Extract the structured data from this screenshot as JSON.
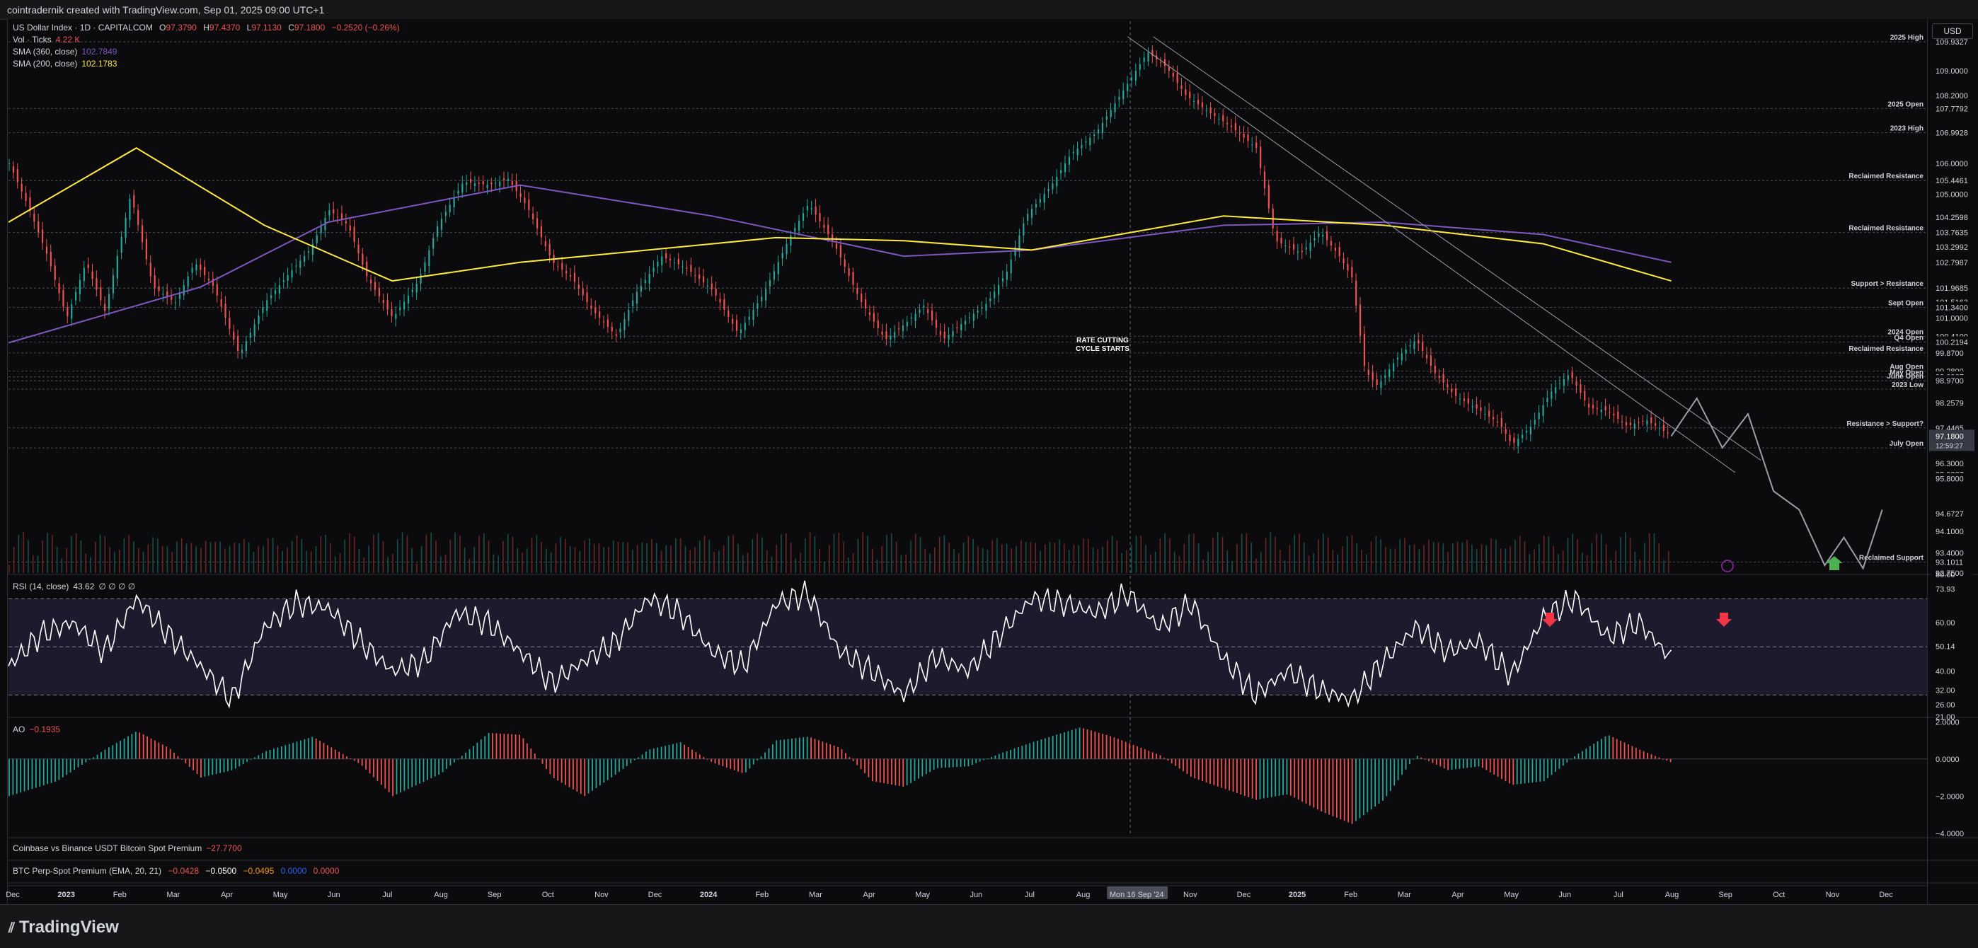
{
  "header": {
    "attribution": "cointradernik created with TradingView.com, Sep 01, 2025 09:00 UTC+1"
  },
  "legend": {
    "symbol": "US Dollar Index · 1D · CAPITALCOM",
    "ohlc": [
      {
        "k": "O",
        "v": "97.3790"
      },
      {
        "k": "H",
        "v": "97.4370"
      },
      {
        "k": "L",
        "v": "97.1130"
      },
      {
        "k": "C",
        "v": "97.1800"
      }
    ],
    "change": "−0.2520 (−0.26%)",
    "vol_label": "Vol · Ticks",
    "vol_value": "4.22 K",
    "sma360_label": "SMA (360, close)",
    "sma360_value": "102.7849",
    "sma200_label": "SMA (200, close)",
    "sma200_value": "102.1783"
  },
  "currency_button": "USD",
  "colors": {
    "up": "#26a69a",
    "down": "#ef5350",
    "sma360": "#7e57c2",
    "sma200": "#ffeb3b",
    "rsi": "#ffffff",
    "rsi_band": "#1d1a2e",
    "arrow_red": "#f23645",
    "arrow_green": "#4caf50"
  },
  "chart_data": [
    {
      "type": "line",
      "name_panel": "price",
      "ylim": [
        92.75,
        110.6
      ],
      "x_ticks": [
        "Dec",
        "2023",
        "Feb",
        "Mar",
        "Apr",
        "May",
        "Jun",
        "Jul",
        "Aug",
        "Sep",
        "Oct",
        "Nov",
        "Dec",
        "2024",
        "Feb",
        "Mar",
        "Apr",
        "May",
        "Jun",
        "Jul",
        "Aug",
        "Mon 16 Sep '24",
        "Nov",
        "Dec",
        "2025",
        "Feb",
        "Mar",
        "Apr",
        "May",
        "Jun",
        "Jul",
        "Aug",
        "Sep",
        "Oct",
        "Nov",
        "Dec"
      ],
      "price_path": [
        [
          0,
          106.0
        ],
        [
          6,
          104.6
        ],
        [
          12,
          103.0
        ],
        [
          18,
          101.0
        ],
        [
          24,
          102.8
        ],
        [
          30,
          101.2
        ],
        [
          38,
          105.0
        ],
        [
          45,
          102.0
        ],
        [
          52,
          101.5
        ],
        [
          58,
          102.8
        ],
        [
          64,
          102.0
        ],
        [
          72,
          99.8
        ],
        [
          80,
          101.5
        ],
        [
          88,
          102.5
        ],
        [
          94,
          103.2
        ],
        [
          100,
          104.5
        ],
        [
          106,
          104.0
        ],
        [
          112,
          102.3
        ],
        [
          120,
          101.0
        ],
        [
          128,
          102.2
        ],
        [
          134,
          104.0
        ],
        [
          142,
          105.4
        ],
        [
          150,
          105.3
        ],
        [
          156,
          105.5
        ],
        [
          162,
          104.6
        ],
        [
          170,
          102.8
        ],
        [
          176,
          102.3
        ],
        [
          182,
          101.3
        ],
        [
          190,
          100.4
        ],
        [
          196,
          101.8
        ],
        [
          204,
          103.0
        ],
        [
          212,
          102.6
        ],
        [
          220,
          101.9
        ],
        [
          228,
          100.5
        ],
        [
          236,
          101.8
        ],
        [
          244,
          103.6
        ],
        [
          250,
          104.7
        ],
        [
          258,
          103.4
        ],
        [
          266,
          101.6
        ],
        [
          274,
          100.3
        ],
        [
          280,
          100.8
        ],
        [
          286,
          101.4
        ],
        [
          292,
          100.3
        ],
        [
          300,
          101.0
        ],
        [
          306,
          101.5
        ],
        [
          312,
          102.5
        ],
        [
          318,
          104.3
        ],
        [
          326,
          105.3
        ],
        [
          332,
          106.3
        ],
        [
          340,
          107.0
        ],
        [
          348,
          108.3
        ],
        [
          356,
          109.6
        ],
        [
          362,
          109.1
        ],
        [
          368,
          108.2
        ],
        [
          376,
          107.6
        ],
        [
          382,
          107.2
        ],
        [
          390,
          106.5
        ],
        [
          396,
          103.5
        ],
        [
          404,
          103.1
        ],
        [
          410,
          103.8
        ],
        [
          416,
          103.0
        ],
        [
          420,
          102.3
        ],
        [
          424,
          99.3
        ],
        [
          428,
          98.8
        ],
        [
          434,
          99.7
        ],
        [
          440,
          100.3
        ],
        [
          446,
          99.2
        ],
        [
          452,
          98.5
        ],
        [
          460,
          98.0
        ],
        [
          466,
          97.6
        ],
        [
          470,
          96.9
        ],
        [
          476,
          97.5
        ],
        [
          482,
          98.6
        ],
        [
          488,
          99.2
        ],
        [
          494,
          98.1
        ],
        [
          500,
          98.0
        ],
        [
          506,
          97.5
        ],
        [
          512,
          97.7
        ],
        [
          520,
          97.18
        ]
      ],
      "projection_path": [
        [
          520,
          97.18
        ],
        [
          528,
          98.4
        ],
        [
          536,
          96.8
        ],
        [
          544,
          97.9
        ],
        [
          552,
          95.4
        ],
        [
          560,
          94.8
        ],
        [
          568,
          93.0
        ],
        [
          574,
          93.9
        ],
        [
          580,
          92.9
        ],
        [
          586,
          94.8
        ]
      ],
      "sma200": [
        [
          0,
          104.1
        ],
        [
          40,
          106.5
        ],
        [
          80,
          104.0
        ],
        [
          120,
          102.2
        ],
        [
          160,
          102.8
        ],
        [
          200,
          103.2
        ],
        [
          240,
          103.6
        ],
        [
          280,
          103.5
        ],
        [
          320,
          103.2
        ],
        [
          380,
          104.3
        ],
        [
          430,
          104.0
        ],
        [
          480,
          103.4
        ],
        [
          520,
          102.2
        ]
      ],
      "sma360": [
        [
          0,
          100.2
        ],
        [
          60,
          102.0
        ],
        [
          100,
          104.1
        ],
        [
          160,
          105.3
        ],
        [
          220,
          104.3
        ],
        [
          280,
          103.0
        ],
        [
          320,
          103.2
        ],
        [
          380,
          104.0
        ],
        [
          430,
          104.1
        ],
        [
          480,
          103.7
        ],
        [
          520,
          102.8
        ]
      ],
      "levels": [
        {
          "label": "2025 High",
          "value": 109.9327
        },
        {
          "label": "2025 Open",
          "value": 107.7792
        },
        {
          "label": "2023 High",
          "value": 106.9928
        },
        {
          "label": "Reclaimed Resistance",
          "value": 105.4461
        },
        {
          "label": "Reclaimed Resistance",
          "value": 103.7635
        },
        {
          "label": "Support > Resistance",
          "value": 101.9685
        },
        {
          "label": "Sept Open",
          "value": 101.34
        },
        {
          "label": "2024 Open",
          "value": 100.41
        },
        {
          "label": "Q4 Open",
          "value": 100.2194
        },
        {
          "label": "Reclaimed Resistance",
          "value": 99.87
        },
        {
          "label": "Aug Open",
          "value": 99.28
        },
        {
          "label": "May Open",
          "value": 99.0967
        },
        {
          "label": "June Open",
          "value": 98.97
        },
        {
          "label": "2023 Low",
          "value": 98.7
        },
        {
          "label": "Resistance > Support?",
          "value": 97.4465
        },
        {
          "label": "July Open",
          "value": 96.7969
        },
        {
          "label": "Reclaimed Support",
          "value": 93.1011
        }
      ],
      "y_tick_labels": [
        "109.9327",
        "109.0000",
        "108.2000",
        "107.7792",
        "106.9928",
        "106.0000",
        "105.4461",
        "105.0000",
        "104.2598",
        "103.7635",
        "103.2992",
        "102.7987",
        "101.9685",
        "101.5163",
        "101.3400",
        "101.0000",
        "100.4100",
        "100.2194",
        "99.8700",
        "99.2800",
        "99.0967",
        "98.9700",
        "98.2579",
        "97.4465",
        "96.7969",
        "96.3000",
        "95.9387",
        "95.8000",
        "94.6727",
        "94.1000",
        "93.4000",
        "93.1011",
        "92.7500"
      ],
      "last_price": "97.1800",
      "countdown": "12:59:27",
      "annotation": "RATE CUTTING CYCLE STARTS"
    },
    {
      "type": "line",
      "name_panel": "rsi",
      "legend_label": "RSI (14, close)",
      "legend_value": "43.62",
      "legend_extra": "∅ ∅ ∅ ∅",
      "ylim": [
        21,
        80
      ],
      "band": [
        30,
        70
      ],
      "y_tick_labels": [
        "80.00",
        "73.93",
        "60.00",
        "50.14",
        "40.00",
        "32.00",
        "26.00",
        "21.00"
      ],
      "path": [
        [
          0,
          42
        ],
        [
          10,
          55
        ],
        [
          20,
          60
        ],
        [
          30,
          48
        ],
        [
          40,
          70
        ],
        [
          50,
          55
        ],
        [
          60,
          42
        ],
        [
          70,
          28
        ],
        [
          80,
          58
        ],
        [
          90,
          68
        ],
        [
          100,
          66
        ],
        [
          110,
          52
        ],
        [
          120,
          40
        ],
        [
          130,
          44
        ],
        [
          140,
          64
        ],
        [
          150,
          60
        ],
        [
          160,
          48
        ],
        [
          170,
          35
        ],
        [
          180,
          44
        ],
        [
          190,
          52
        ],
        [
          200,
          70
        ],
        [
          210,
          64
        ],
        [
          220,
          48
        ],
        [
          230,
          42
        ],
        [
          240,
          68
        ],
        [
          250,
          72
        ],
        [
          260,
          48
        ],
        [
          270,
          40
        ],
        [
          280,
          30
        ],
        [
          290,
          46
        ],
        [
          300,
          40
        ],
        [
          310,
          55
        ],
        [
          320,
          70
        ],
        [
          330,
          68
        ],
        [
          340,
          64
        ],
        [
          350,
          72
        ],
        [
          360,
          58
        ],
        [
          370,
          68
        ],
        [
          380,
          45
        ],
        [
          390,
          30
        ],
        [
          400,
          40
        ],
        [
          410,
          32
        ],
        [
          420,
          28
        ],
        [
          430,
          44
        ],
        [
          440,
          58
        ],
        [
          450,
          48
        ],
        [
          460,
          52
        ],
        [
          470,
          38
        ],
        [
          480,
          62
        ],
        [
          490,
          70
        ],
        [
          500,
          54
        ],
        [
          510,
          60
        ],
        [
          520,
          45
        ]
      ]
    },
    {
      "type": "bar",
      "name_panel": "ao",
      "legend_label": "AO",
      "legend_value": "−0.1935",
      "ylim": [
        -4.2,
        2.2
      ],
      "y_tick_labels": [
        "2.0000",
        "0.0000",
        "−2.0000",
        "−4.0000"
      ],
      "path": [
        [
          0,
          -2.0
        ],
        [
          15,
          -1.2
        ],
        [
          30,
          0.5
        ],
        [
          40,
          1.5
        ],
        [
          50,
          0.6
        ],
        [
          60,
          -1.0
        ],
        [
          70,
          -0.6
        ],
        [
          80,
          0.4
        ],
        [
          95,
          1.2
        ],
        [
          110,
          -0.3
        ],
        [
          120,
          -2.0
        ],
        [
          135,
          -0.8
        ],
        [
          150,
          1.4
        ],
        [
          160,
          1.3
        ],
        [
          170,
          -1.0
        ],
        [
          180,
          -2.0
        ],
        [
          190,
          -0.8
        ],
        [
          200,
          0.5
        ],
        [
          210,
          0.9
        ],
        [
          220,
          -0.2
        ],
        [
          230,
          -0.8
        ],
        [
          240,
          1.0
        ],
        [
          250,
          1.2
        ],
        [
          260,
          0.6
        ],
        [
          270,
          -1.2
        ],
        [
          280,
          -1.5
        ],
        [
          290,
          -0.5
        ],
        [
          300,
          -0.4
        ],
        [
          310,
          0.3
        ],
        [
          320,
          0.9
        ],
        [
          335,
          1.7
        ],
        [
          345,
          1.2
        ],
        [
          360,
          0.2
        ],
        [
          370,
          -1.0
        ],
        [
          380,
          -1.6
        ],
        [
          390,
          -2.2
        ],
        [
          400,
          -1.9
        ],
        [
          410,
          -2.8
        ],
        [
          420,
          -3.5
        ],
        [
          430,
          -2.2
        ],
        [
          440,
          0.2
        ],
        [
          450,
          -0.6
        ],
        [
          460,
          -0.4
        ],
        [
          470,
          -1.4
        ],
        [
          480,
          -1.2
        ],
        [
          490,
          0.2
        ],
        [
          500,
          1.3
        ],
        [
          510,
          0.5
        ],
        [
          520,
          -0.2
        ]
      ]
    }
  ],
  "extra_panels": {
    "premium1_label": "Coinbase vs Binance USDT Bitcoin Spot Premium",
    "premium1_value": "−27.7700",
    "premium2_label": "BTC Perp-Spot Premium (EMA, 20, 21)",
    "premium2_values": [
      "−0.0428",
      "−0.0500",
      "−0.0495",
      "0.0000",
      "0.0000"
    ]
  },
  "footer": {
    "brand": "TradingView"
  }
}
